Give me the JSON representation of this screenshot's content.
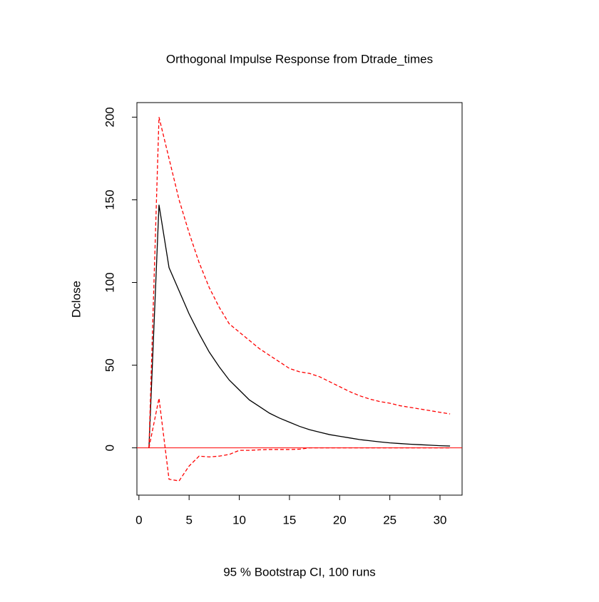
{
  "chart_data": {
    "type": "line",
    "title": "Orthogonal Impulse Response from Dtrade_times",
    "xlabel": "95 % Bootstrap CI,  100 runs",
    "ylabel": "Dclose",
    "x": [
      1,
      2,
      3,
      4,
      5,
      6,
      7,
      8,
      9,
      10,
      11,
      12,
      13,
      14,
      15,
      16,
      17,
      18,
      19,
      20,
      21,
      22,
      23,
      24,
      25,
      26,
      27,
      28,
      29,
      30,
      31
    ],
    "series": [
      {
        "color": "#000000",
        "linestyle": "solid",
        "values": [
          0,
          147,
          109,
          95,
          81,
          69,
          58,
          49,
          41,
          35,
          29,
          25,
          21,
          18,
          15.5,
          13,
          11,
          9.5,
          8,
          7,
          6,
          5,
          4.3,
          3.6,
          3,
          2.6,
          2.2,
          1.9,
          1.6,
          1.3,
          1.1
        ]
      },
      {
        "color": "#ff0000",
        "linestyle": "dashed",
        "values": [
          0,
          200,
          175,
          150,
          130,
          112,
          97,
          85,
          75,
          70,
          65,
          60,
          56,
          52,
          48,
          46,
          45,
          43,
          40,
          37,
          34,
          31.5,
          29.5,
          28,
          27,
          25.5,
          24.5,
          23.5,
          22.5,
          21.5,
          20.5
        ]
      },
      {
        "color": "#ff0000",
        "linestyle": "dashed",
        "values": [
          0,
          30,
          -19,
          -20,
          -11,
          -5,
          -5.5,
          -5,
          -4,
          -1.5,
          -1.5,
          -1.2,
          -1,
          -1,
          -1,
          -0.8,
          0,
          0,
          0,
          0,
          0,
          0,
          0,
          0,
          0,
          0,
          0,
          0,
          0,
          0,
          0
        ]
      }
    ],
    "hline": 0,
    "hline_color": "#ff0000",
    "xlim": [
      -0.2,
      32.2
    ],
    "xticks": [
      0,
      5,
      10,
      15,
      20,
      25,
      30
    ],
    "ylim": [
      -28.6,
      208.8
    ],
    "yticks": [
      0,
      50,
      100,
      150,
      200
    ]
  }
}
